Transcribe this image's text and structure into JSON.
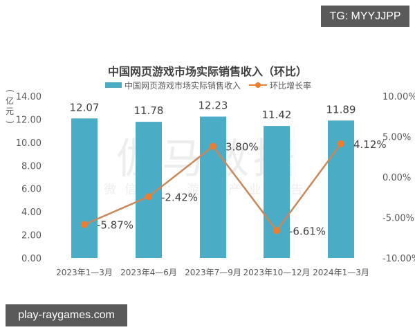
{
  "watermark_badges": {
    "top_right": "TG: MYYJJPP",
    "bottom_left": "play-raygames.com"
  },
  "chart_watermark": {
    "main": "伽马数据",
    "sub": "微信号：游戏产业报告"
  },
  "colors": {
    "bar": "#4bacc6",
    "line": "#ed7d31",
    "line_stroke": "#c9875a",
    "text": "#595959",
    "badge_bg": "#5a5a5a"
  },
  "chart_data": {
    "type": "bar+line",
    "title": "中国网页游戏市场实际销售收入（环比）",
    "categories": [
      "2023年1—3月",
      "2023年4—6月",
      "2023年7—9月",
      "2023年10—12月",
      "2024年1—3月"
    ],
    "series": [
      {
        "name": "中国网页游戏市场实际销售收入",
        "type": "bar",
        "axis": "left",
        "values": [
          12.07,
          11.78,
          12.23,
          11.42,
          11.89
        ],
        "labels": [
          "12.07",
          "11.78",
          "12.23",
          "11.42",
          "11.89"
        ]
      },
      {
        "name": "环比增长率",
        "type": "line",
        "axis": "right",
        "values": [
          -5.87,
          -2.42,
          3.8,
          -6.61,
          4.12
        ],
        "labels": [
          "-5.87%",
          "-2.42%",
          "3.80%",
          "-6.61%",
          "4.12%"
        ]
      }
    ],
    "ylabel": "（亿元）",
    "ylim": [
      0,
      14
    ],
    "yticks": [
      "0.00",
      "2.00",
      "4.00",
      "6.00",
      "8.00",
      "10.00",
      "12.00",
      "14.00"
    ],
    "y2lim": [
      -10,
      10
    ],
    "y2ticks": [
      "-10.00%",
      "-5.00%",
      "0.00%",
      "5.00%",
      "10.00%"
    ],
    "grid": false,
    "legend_position": "top"
  }
}
